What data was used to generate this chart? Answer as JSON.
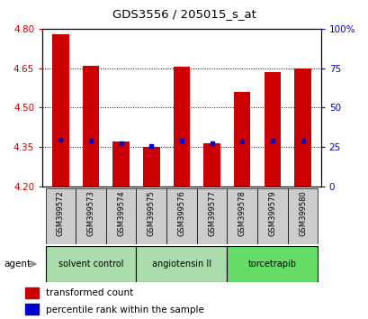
{
  "title": "GDS3556 / 205015_s_at",
  "samples": [
    "GSM399572",
    "GSM399573",
    "GSM399574",
    "GSM399575",
    "GSM399576",
    "GSM399577",
    "GSM399578",
    "GSM399579",
    "GSM399580"
  ],
  "red_values": [
    4.78,
    4.66,
    4.37,
    4.35,
    4.655,
    4.365,
    4.56,
    4.635,
    4.65
  ],
  "blue_values": [
    4.38,
    4.375,
    4.365,
    4.355,
    4.375,
    4.365,
    4.37,
    4.375,
    4.375
  ],
  "ylim_left": [
    4.2,
    4.8
  ],
  "ylim_right": [
    0,
    100
  ],
  "yticks_left": [
    4.2,
    4.35,
    4.5,
    4.65,
    4.8
  ],
  "yticks_right": [
    0,
    25,
    50,
    75,
    100
  ],
  "ytick_labels_right": [
    "0",
    "25",
    "50",
    "75",
    "100%"
  ],
  "bar_color": "#cc0000",
  "blue_color": "#0000cc",
  "bar_width": 0.55,
  "group_info": [
    {
      "start": 0,
      "end": 2,
      "label": "solvent control",
      "color": "#aaddaa"
    },
    {
      "start": 3,
      "end": 5,
      "label": "angiotensin II",
      "color": "#aaddaa"
    },
    {
      "start": 6,
      "end": 8,
      "label": "torcetrapib",
      "color": "#66dd66"
    }
  ],
  "agent_label": "agent",
  "legend_red": "transformed count",
  "legend_blue": "percentile rank within the sample",
  "left_tick_color": "#cc0000",
  "right_tick_color": "#0000cc",
  "xlabel_bg": "#cccccc",
  "grid_yticks": [
    4.35,
    4.5,
    4.65
  ]
}
